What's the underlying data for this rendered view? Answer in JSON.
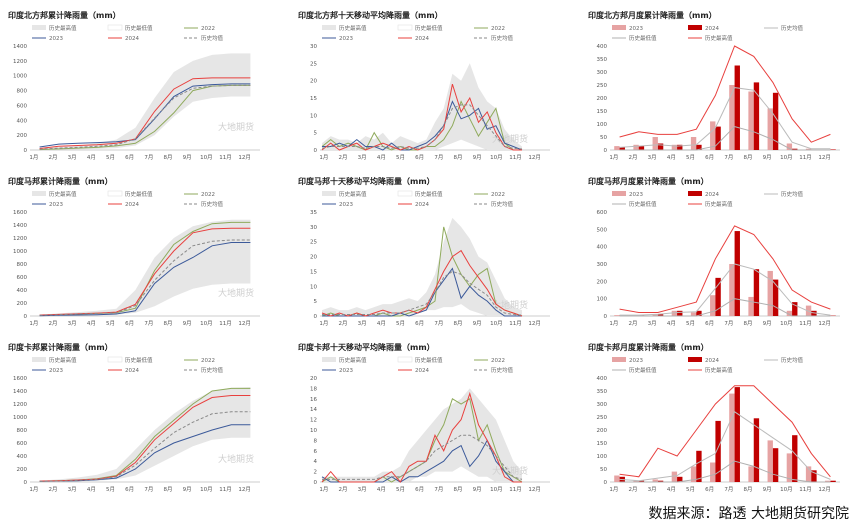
{
  "months": [
    "1月",
    "2月",
    "3月",
    "4月",
    "5月",
    "6月",
    "7月",
    "8月",
    "9月",
    "10月",
    "11月",
    "12月"
  ],
  "colors": {
    "c2022": "#8faa5c",
    "c2023": "#3c5a9a",
    "c2024": "#e8403e",
    "avg": "#8a8a8a",
    "band": "#e6e6e6",
    "hmax": "#e8403e",
    "hmin": "#b0b0b0",
    "bar2023": "#e6a3a3",
    "bar2024": "#c00000"
  },
  "source": "数据来源：路透  大地期货研究院",
  "watermark": "大地期货",
  "chart_data": [
    {
      "type": "area",
      "title": "印度北方邦累计降雨量（mm）",
      "ylim": [
        0,
        1400
      ],
      "yticks": [
        0,
        200,
        400,
        600,
        800,
        1000,
        1200,
        1400
      ],
      "legend": [
        "历史最高值",
        "历史最低值",
        "2022",
        "2023",
        "2024",
        "历史均值"
      ],
      "hist_max": [
        20,
        40,
        60,
        90,
        140,
        300,
        700,
        1050,
        1200,
        1280,
        1300,
        1300
      ],
      "hist_min": [
        0,
        5,
        10,
        15,
        25,
        60,
        200,
        450,
        650,
        700,
        720,
        720
      ],
      "series": [
        {
          "name": "2022",
          "values": [
            5,
            15,
            25,
            35,
            55,
            90,
            250,
            500,
            800,
            860,
            870,
            870
          ]
        },
        {
          "name": "2023",
          "values": [
            40,
            80,
            90,
            100,
            110,
            140,
            420,
            720,
            860,
            880,
            890,
            890
          ]
        },
        {
          "name": "2024",
          "values": [
            20,
            50,
            60,
            70,
            90,
            150,
            520,
            820,
            960,
            970,
            970,
            970
          ]
        },
        {
          "name": "历史均值",
          "values": [
            10,
            25,
            35,
            50,
            70,
            150,
            430,
            700,
            830,
            860,
            870,
            870
          ]
        }
      ]
    },
    {
      "type": "line",
      "title": "印度北方邦十天移动平均降雨量（mm）",
      "ylim": [
        0,
        30
      ],
      "yticks": [
        0,
        5,
        10,
        15,
        20,
        25,
        30
      ],
      "legend": [
        "历史最高值",
        "历史最低值",
        "2022",
        "2023",
        "2024",
        "历史均值"
      ],
      "band_max": [
        2,
        4,
        3,
        3,
        2,
        4,
        3,
        5,
        2,
        4,
        3,
        2,
        3,
        8,
        12,
        22,
        20,
        25,
        18,
        14,
        12,
        6,
        3,
        1
      ],
      "band_min": [
        0,
        0,
        0,
        0,
        0,
        0,
        0,
        0,
        0,
        0,
        0,
        0,
        0,
        0,
        1,
        2,
        3,
        2,
        1,
        0,
        0,
        0,
        0,
        0
      ],
      "series": [
        {
          "name": "2022",
          "values": [
            1,
            3,
            1,
            2,
            1,
            0,
            5,
            1,
            0,
            1,
            0,
            0,
            1,
            1,
            3,
            7,
            14,
            9,
            4,
            8,
            12,
            2,
            0,
            0
          ]
        },
        {
          "name": "2023",
          "values": [
            1,
            1,
            2,
            1,
            3,
            1,
            1,
            0,
            2,
            0,
            0,
            1,
            2,
            4,
            7,
            14,
            9,
            10,
            12,
            6,
            7,
            2,
            1,
            0
          ]
        },
        {
          "name": "2024",
          "values": [
            0,
            2,
            0,
            1,
            2,
            0,
            1,
            2,
            1,
            0,
            1,
            0,
            1,
            3,
            6,
            19,
            11,
            15,
            8,
            11,
            5,
            1,
            0,
            0
          ]
        },
        {
          "name": "历史均值",
          "values": [
            0.5,
            1,
            1,
            1,
            1,
            0.5,
            1,
            1,
            0.5,
            1,
            0.5,
            0.5,
            1,
            3,
            7,
            12,
            13,
            13,
            10,
            7,
            4,
            1,
            0.5,
            0.3
          ]
        }
      ]
    },
    {
      "type": "bar",
      "title": "印度北方邦月度累计降雨量（mm）",
      "ylim": [
        0,
        400
      ],
      "yticks": [
        0,
        50,
        100,
        150,
        200,
        250,
        300,
        350,
        400
      ],
      "legend": [
        "2023",
        "2024",
        "历史均值",
        "历史最低值",
        "历史最高值"
      ],
      "series": [
        {
          "name": "2023",
          "values": [
            15,
            20,
            50,
            20,
            50,
            110,
            250,
            225,
            160,
            25,
            5,
            2
          ]
        },
        {
          "name": "2024",
          "values": [
            10,
            15,
            25,
            20,
            20,
            90,
            325,
            260,
            220,
            5,
            2,
            2
          ]
        },
        {
          "name": "历史均值",
          "values": [
            10,
            15,
            20,
            15,
            20,
            85,
            240,
            230,
            140,
            30,
            5,
            5
          ]
        },
        {
          "name": "历史最低值",
          "values": [
            0,
            0,
            0,
            0,
            0,
            15,
            90,
            70,
            40,
            0,
            0,
            0
          ]
        },
        {
          "name": "历史最高值",
          "values": [
            50,
            70,
            60,
            60,
            80,
            210,
            400,
            360,
            260,
            120,
            30,
            60
          ]
        }
      ]
    },
    {
      "type": "area",
      "title": "印度马邦累计降雨量（mm）",
      "ylim": [
        0,
        1600
      ],
      "yticks": [
        0,
        200,
        400,
        600,
        800,
        1000,
        1200,
        1400,
        1600
      ],
      "legend": [
        "历史最高值",
        "历史最低值",
        "2022",
        "2023",
        "2024",
        "历史均值"
      ],
      "hist_max": [
        20,
        40,
        60,
        80,
        110,
        400,
        900,
        1200,
        1380,
        1450,
        1480,
        1480
      ],
      "hist_min": [
        0,
        5,
        10,
        15,
        20,
        50,
        150,
        300,
        420,
        480,
        500,
        500
      ],
      "series": [
        {
          "name": "2022",
          "values": [
            10,
            20,
            30,
            40,
            50,
            120,
            700,
            1100,
            1300,
            1420,
            1440,
            1440
          ]
        },
        {
          "name": "2023",
          "values": [
            5,
            10,
            15,
            20,
            30,
            80,
            500,
            750,
            900,
            1080,
            1130,
            1130
          ]
        },
        {
          "name": "2024",
          "values": [
            15,
            25,
            35,
            45,
            60,
            180,
            650,
            1000,
            1280,
            1340,
            1350,
            1350
          ]
        },
        {
          "name": "历史均值",
          "values": [
            10,
            20,
            30,
            40,
            50,
            160,
            550,
            850,
            1080,
            1150,
            1170,
            1170
          ]
        }
      ]
    },
    {
      "type": "line",
      "title": "印度马邦十天移动平均降雨量（mm）",
      "ylim": [
        0,
        35
      ],
      "yticks": [
        0,
        5,
        10,
        15,
        20,
        25,
        30,
        35
      ],
      "legend": [
        "历史最高值",
        "历史最低值",
        "2022",
        "2023",
        "2024",
        "历史均值"
      ],
      "band_max": [
        2,
        3,
        2,
        2,
        3,
        2,
        3,
        4,
        4,
        5,
        6,
        5,
        8,
        14,
        25,
        33,
        30,
        26,
        20,
        18,
        12,
        6,
        3,
        2
      ],
      "band_min": [
        0,
        0,
        0,
        0,
        0,
        0,
        0,
        0,
        0,
        0,
        0,
        1,
        2,
        2,
        3,
        3,
        4,
        2,
        1,
        0,
        0,
        0,
        0,
        0
      ],
      "series": [
        {
          "name": "2022",
          "values": [
            0,
            1,
            0,
            0,
            1,
            0,
            0,
            1,
            0,
            0,
            1,
            2,
            3,
            5,
            30,
            20,
            14,
            10,
            14,
            16,
            4,
            2,
            1,
            0
          ]
        },
        {
          "name": "2023",
          "values": [
            0,
            0,
            0,
            0,
            0,
            0,
            0,
            0,
            0,
            1,
            0,
            1,
            2,
            8,
            12,
            16,
            6,
            10,
            7,
            5,
            2,
            0,
            0,
            0
          ]
        },
        {
          "name": "2024",
          "values": [
            1,
            0,
            1,
            0,
            1,
            0,
            1,
            2,
            1,
            1,
            2,
            1,
            3,
            9,
            15,
            20,
            22,
            17,
            13,
            9,
            4,
            2,
            1,
            0
          ]
        },
        {
          "name": "历史均值",
          "values": [
            0.5,
            0.5,
            0.5,
            0.5,
            0.5,
            0.5,
            0.5,
            1,
            1,
            1,
            2,
            3,
            4,
            8,
            13,
            15,
            14,
            11,
            9,
            7,
            3,
            1,
            0.5,
            0.3
          ]
        }
      ]
    },
    {
      "type": "bar",
      "title": "印度马邦月度累计降雨量（mm）",
      "ylim": [
        0,
        600
      ],
      "yticks": [
        0,
        100,
        200,
        300,
        400,
        500,
        600
      ],
      "legend": [
        "2023",
        "2024",
        "历史均值",
        "历史最低值",
        "历史最高值"
      ],
      "series": [
        {
          "name": "2023",
          "values": [
            5,
            5,
            10,
            30,
            20,
            120,
            300,
            110,
            260,
            30,
            60,
            2
          ]
        },
        {
          "name": "2024",
          "values": [
            5,
            5,
            10,
            30,
            30,
            220,
            490,
            270,
            210,
            80,
            30,
            2
          ]
        },
        {
          "name": "历史均值",
          "values": [
            5,
            5,
            10,
            20,
            25,
            160,
            300,
            270,
            200,
            70,
            20,
            5
          ]
        },
        {
          "name": "历史最低值",
          "values": [
            0,
            0,
            0,
            0,
            0,
            30,
            100,
            80,
            60,
            0,
            0,
            0
          ]
        },
        {
          "name": "历史最高值",
          "values": [
            40,
            20,
            20,
            50,
            80,
            330,
            520,
            470,
            330,
            150,
            80,
            40
          ]
        }
      ]
    },
    {
      "type": "area",
      "title": "印度卡邦累计降雨量（mm）",
      "ylim": [
        0,
        1600
      ],
      "yticks": [
        0,
        200,
        400,
        600,
        800,
        1000,
        1200,
        1400,
        1600
      ],
      "legend": [
        "历史最高值",
        "历史最低值",
        "2022",
        "2023",
        "2024",
        "历史均值"
      ],
      "hist_max": [
        20,
        40,
        70,
        110,
        200,
        500,
        800,
        1050,
        1250,
        1400,
        1450,
        1460
      ],
      "hist_min": [
        0,
        5,
        10,
        20,
        40,
        100,
        250,
        400,
        550,
        650,
        680,
        680
      ],
      "series": [
        {
          "name": "2022",
          "values": [
            10,
            20,
            30,
            50,
            100,
            350,
            700,
            950,
            1200,
            1400,
            1440,
            1440
          ]
        },
        {
          "name": "2023",
          "values": [
            10,
            15,
            20,
            35,
            60,
            200,
            450,
            600,
            700,
            800,
            880,
            880
          ]
        },
        {
          "name": "2024",
          "values": [
            15,
            20,
            30,
            45,
            90,
            300,
            650,
            900,
            1150,
            1300,
            1330,
            1330
          ]
        },
        {
          "name": "历史均值",
          "values": [
            10,
            15,
            25,
            40,
            80,
            260,
            520,
            760,
            920,
            1050,
            1080,
            1080
          ]
        }
      ]
    },
    {
      "type": "line",
      "title": "印度卡邦十天移动平均降雨量（mm）",
      "ylim": [
        0,
        20
      ],
      "yticks": [
        0,
        2,
        4,
        6,
        8,
        10,
        12,
        14,
        16,
        18,
        20
      ],
      "legend": [
        "历史最高值",
        "历史最低值",
        "2022",
        "2023",
        "2024",
        "历史均值"
      ],
      "band_max": [
        1,
        1,
        1,
        1,
        1,
        1,
        1,
        2,
        2,
        3,
        6,
        8,
        10,
        12,
        14,
        15,
        16,
        18,
        16,
        14,
        12,
        8,
        4,
        2
      ],
      "band_min": [
        0,
        0,
        0,
        0,
        0,
        0,
        0,
        0,
        0,
        0,
        0,
        1,
        1,
        2,
        2,
        2,
        3,
        2,
        1,
        1,
        0,
        0,
        0,
        0
      ],
      "series": [
        {
          "name": "2022",
          "values": [
            0,
            1,
            0,
            0,
            0,
            0,
            0,
            1,
            0,
            1,
            2,
            3,
            4,
            8,
            11,
            16,
            15,
            16,
            8,
            11,
            6,
            2,
            1,
            0
          ]
        },
        {
          "name": "2023",
          "values": [
            1,
            0,
            0,
            0,
            0,
            0,
            0,
            0,
            1,
            0,
            1,
            1,
            2,
            3,
            4,
            6,
            7,
            3,
            5,
            8,
            4,
            2,
            0,
            0
          ]
        },
        {
          "name": "2024",
          "values": [
            0,
            2,
            0,
            0,
            0,
            0,
            0,
            1,
            2,
            0,
            3,
            4,
            4,
            9,
            6,
            10,
            12,
            17,
            11,
            8,
            5,
            1,
            0,
            0
          ]
        },
        {
          "name": "历史均值",
          "values": [
            0.5,
            0.5,
            0.5,
            0.5,
            0.5,
            0.5,
            0.5,
            1,
            1,
            1,
            2,
            3,
            4,
            6,
            7,
            8,
            9,
            9,
            8,
            7,
            5,
            3,
            1,
            0.5
          ]
        }
      ]
    },
    {
      "type": "bar",
      "title": "印度卡邦月度累计降雨量（mm）",
      "ylim": [
        0,
        400
      ],
      "yticks": [
        0,
        50,
        100,
        150,
        200,
        250,
        300,
        350,
        400
      ],
      "legend": [
        "2023",
        "2024",
        "历史均值",
        "历史最低值",
        "历史最高值"
      ],
      "series": [
        {
          "name": "2023",
          "values": [
            25,
            5,
            10,
            40,
            60,
            75,
            340,
            60,
            160,
            110,
            60,
            5
          ]
        },
        {
          "name": "2024",
          "values": [
            20,
            5,
            5,
            20,
            120,
            235,
            365,
            245,
            130,
            180,
            45,
            5
          ]
        },
        {
          "name": "历史均值",
          "values": [
            10,
            5,
            15,
            25,
            70,
            110,
            270,
            220,
            170,
            120,
            40,
            10
          ]
        },
        {
          "name": "历史最低值",
          "values": [
            0,
            0,
            0,
            0,
            10,
            30,
            80,
            60,
            30,
            10,
            0,
            0
          ]
        },
        {
          "name": "历史最高值",
          "values": [
            30,
            20,
            130,
            100,
            200,
            300,
            370,
            370,
            300,
            230,
            110,
            20
          ]
        }
      ]
    }
  ]
}
